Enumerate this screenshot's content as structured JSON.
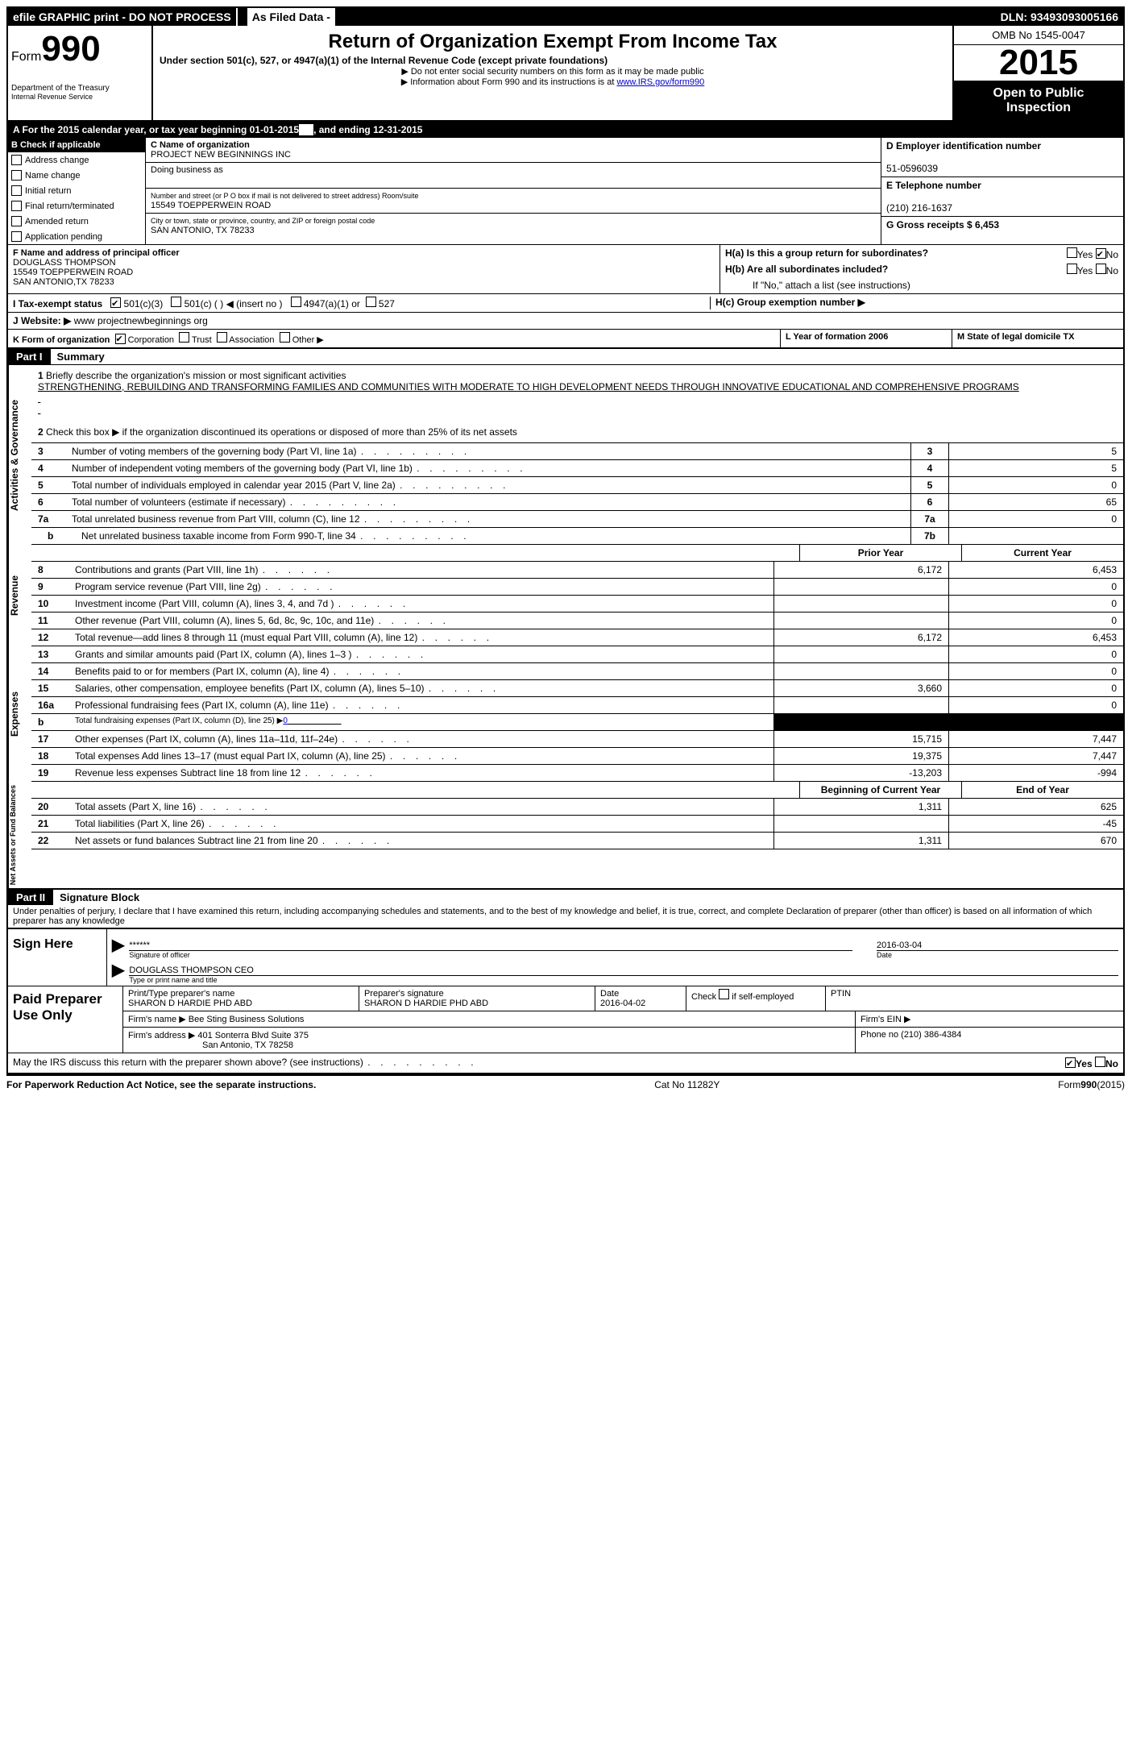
{
  "topbar": {
    "efile": "efile GRAPHIC print - DO NOT PROCESS",
    "as_filed": "As Filed Data -",
    "dln": "DLN: 93493093005166"
  },
  "header": {
    "form_word": "Form",
    "form_num": "990",
    "dept1": "Department of the Treasury",
    "dept2": "Internal Revenue Service",
    "title": "Return of Organization Exempt From Income Tax",
    "subtitle": "Under section 501(c), 527, or 4947(a)(1) of the Internal Revenue Code (except private foundations)",
    "instr1": "▶ Do not enter social security numbers on this form as it may be made public",
    "instr2_pre": "▶ Information about Form 990 and its instructions is at ",
    "instr2_link": "www.IRS.gov/form990",
    "omb": "OMB No 1545-0047",
    "year": "2015",
    "open1": "Open to Public",
    "open2": "Inspection"
  },
  "lineA": {
    "pre": "A  For the 2015 calendar year, or tax year beginning 01-01-2015",
    "mid": ", and ending 12-31-2015"
  },
  "colB": {
    "hdr": "B Check if applicable",
    "addr": "Address change",
    "name": "Name change",
    "init": "Initial return",
    "final": "Final return/terminated",
    "amend": "Amended return",
    "app": "Application pending"
  },
  "colC": {
    "name_lbl": "C Name of organization",
    "name": "PROJECT NEW BEGINNINGS INC",
    "dba_lbl": "Doing business as",
    "street_lbl": "Number and street (or P O  box if mail is not delivered to street address)  Room/suite",
    "street": "15549 TOEPPERWEIN ROAD",
    "city_lbl": "City or town, state or province, country, and ZIP or foreign postal code",
    "city": "SAN ANTONIO, TX 78233"
  },
  "colD": {
    "d_lbl": "D Employer identification number",
    "ein": "51-0596039",
    "e_lbl": "E Telephone number",
    "phone": "(210) 216-1637",
    "g_lbl": "G Gross receipts $ 6,453"
  },
  "f": {
    "lbl": "F   Name and address of principal officer",
    "name": "DOUGLASS THOMPSON",
    "street": "15549 TOEPPERWEIN ROAD",
    "city": "SAN ANTONIO,TX 78233"
  },
  "h": {
    "ha": "H(a)  Is this a group return for subordinates?",
    "hb": "H(b)  Are all subordinates included?",
    "hb_note": "If \"No,\" attach a list  (see instructions)",
    "hc": "H(c)   Group exemption number ▶",
    "yes": "Yes",
    "no": "No"
  },
  "i": {
    "lbl": "I   Tax-exempt status",
    "c3": "501(c)(3)",
    "c": "501(c) (  ) ◀ (insert no )",
    "a1": "4947(a)(1) or",
    "c527": "527"
  },
  "j": {
    "lbl": "J  Website: ▶",
    "val": "  www projectnewbeginnings org"
  },
  "k": {
    "lbl": "K Form of organization",
    "corp": "Corporation",
    "trust": "Trust",
    "assoc": "Association",
    "other": "Other ▶",
    "l": "L Year of formation  2006",
    "m": "M State of legal domicile  TX"
  },
  "part1": {
    "hdr": "Part I",
    "title": "Summary",
    "q1_lbl": "1",
    "q1": "Briefly describe the organization's mission or most significant activities",
    "mission": "STRENGTHENING, REBUILDING AND TRANSFORMING FAMILIES AND COMMUNITIES WITH MODERATE TO HIGH DEVELOPMENT NEEDS THROUGH INNOVATIVE EDUCATIONAL AND COMPREHENSIVE PROGRAMS",
    "q2_lbl": "2",
    "q2": "Check this box ▶     if the organization discontinued its operations or disposed of more than 25% of its net assets",
    "rows_num": [
      {
        "n": "3",
        "d": "Number of voting members of the governing body (Part VI, line 1a)",
        "b": "3",
        "v": "5"
      },
      {
        "n": "4",
        "d": "Number of independent voting members of the governing body (Part VI, line 1b)",
        "b": "4",
        "v": "5"
      },
      {
        "n": "5",
        "d": "Total number of individuals employed in calendar year 2015 (Part V, line 2a)",
        "b": "5",
        "v": "0"
      },
      {
        "n": "6",
        "d": "Total number of volunteers (estimate if necessary)",
        "b": "6",
        "v": "65"
      },
      {
        "n": "7a",
        "d": "Total unrelated business revenue from Part VIII, column (C), line 12",
        "b": "7a",
        "v": "0"
      },
      {
        "n": "b",
        "d": "Net unrelated business taxable income from Form 990-T, line 34",
        "b": "7b",
        "v": ""
      }
    ],
    "col_prior": "Prior Year",
    "col_curr": "Current Year",
    "side_gov": "Activities & Governance",
    "side_rev": "Revenue",
    "side_exp": "Expenses",
    "side_net": "Net Assets or Fund Balances",
    "rev": [
      {
        "n": "8",
        "d": "Contributions and grants (Part VIII, line 1h)",
        "p": "6,172",
        "c": "6,453"
      },
      {
        "n": "9",
        "d": "Program service revenue (Part VIII, line 2g)",
        "p": "",
        "c": "0"
      },
      {
        "n": "10",
        "d": "Investment income (Part VIII, column (A), lines 3, 4, and 7d )",
        "p": "",
        "c": "0"
      },
      {
        "n": "11",
        "d": "Other revenue (Part VIII, column (A), lines 5, 6d, 8c, 9c, 10c, and 11e)",
        "p": "",
        "c": "0"
      },
      {
        "n": "12",
        "d": "Total revenue—add lines 8 through 11 (must equal Part VIII, column (A), line 12)",
        "p": "6,172",
        "c": "6,453"
      }
    ],
    "exp": [
      {
        "n": "13",
        "d": "Grants and similar amounts paid (Part IX, column (A), lines 1–3 )",
        "p": "",
        "c": "0"
      },
      {
        "n": "14",
        "d": "Benefits paid to or for members (Part IX, column (A), line 4)",
        "p": "",
        "c": "0"
      },
      {
        "n": "15",
        "d": "Salaries, other compensation, employee benefits (Part IX, column (A), lines 5–10)",
        "p": "3,660",
        "c": "0"
      },
      {
        "n": "16a",
        "d": "Professional fundraising fees (Part IX, column (A), line 11e)",
        "p": "",
        "c": "0"
      }
    ],
    "exp_b_n": "b",
    "exp_b_d_pre": "Total fundraising expenses (Part IX, column (D), line 25) ▶",
    "exp_b_val": "0",
    "exp2": [
      {
        "n": "17",
        "d": "Other expenses (Part IX, column (A), lines 11a–11d, 11f–24e)",
        "p": "15,715",
        "c": "7,447"
      },
      {
        "n": "18",
        "d": "Total expenses  Add lines 13–17 (must equal Part IX, column (A), line 25)",
        "p": "19,375",
        "c": "7,447"
      },
      {
        "n": "19",
        "d": "Revenue less expenses  Subtract line 18 from line 12",
        "p": "-13,203",
        "c": "-994"
      }
    ],
    "col_beg": "Beginning of Current Year",
    "col_end": "End of Year",
    "net": [
      {
        "n": "20",
        "d": "Total assets (Part X, line 16)",
        "p": "1,311",
        "c": "625"
      },
      {
        "n": "21",
        "d": "Total liabilities (Part X, line 26)",
        "p": "",
        "c": "-45"
      },
      {
        "n": "22",
        "d": "Net assets or fund balances  Subtract line 21 from line 20",
        "p": "1,311",
        "c": "670"
      }
    ]
  },
  "part2": {
    "hdr": "Part II",
    "title": "Signature Block",
    "decl": "Under penalties of perjury, I declare that I have examined this return, including accompanying schedules and statements, and to the best of my knowledge and belief, it is true, correct, and complete  Declaration of preparer (other than officer) is based on all information of which preparer has any knowledge"
  },
  "sign": {
    "label": "Sign Here",
    "stars": "******",
    "sig_lbl": "Signature of officer",
    "date": "2016-03-04",
    "date_lbl": "Date",
    "name": "DOUGLASS THOMPSON CEO",
    "name_lbl": "Type or print name and title"
  },
  "prep": {
    "label": "Paid Preparer Use Only",
    "pn_lbl": "Print/Type preparer's name",
    "pn": "SHARON D HARDIE PHD ABD",
    "ps_lbl": "Preparer's signature",
    "ps": "SHARON D HARDIE PHD ABD",
    "pd_lbl": "Date",
    "pd": "2016-04-02",
    "chk": "Check       if self-employed",
    "ptin": "PTIN",
    "firm_lbl": "Firm's name    ▶ ",
    "firm": "Bee Sting Business Solutions",
    "ein_lbl": "Firm's EIN ▶",
    "addr_lbl": "Firm's address ▶ ",
    "addr1": "401 Sonterra Blvd Suite 375",
    "addr2": "San Antonio, TX  78258",
    "phone_lbl": "Phone no  (210) 386-4384"
  },
  "footer": {
    "discuss": "May the IRS discuss this return with the preparer shown above? (see instructions)",
    "yes": "Yes",
    "no": "No",
    "paperwork": "For Paperwork Reduction Act Notice, see the separate instructions.",
    "cat": "Cat No  11282Y",
    "form": "Form",
    "form990": "990",
    "formyr": "(2015)"
  }
}
